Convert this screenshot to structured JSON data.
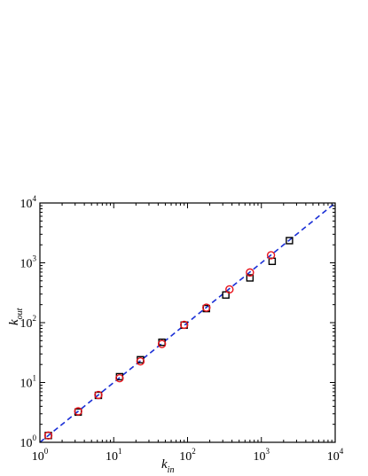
{
  "chart_data": {
    "type": "scatter",
    "title": "",
    "xlabel": {
      "main": "k",
      "sub": "in"
    },
    "ylabel": {
      "main": "k",
      "sub": "out"
    },
    "xscale": "log",
    "yscale": "log",
    "xlim": [
      1,
      10000
    ],
    "ylim": [
      1,
      10000
    ],
    "grid": false,
    "legend": "none",
    "x_ticks": [
      {
        "base": "10",
        "exp": "0"
      },
      {
        "base": "10",
        "exp": "1"
      },
      {
        "base": "10",
        "exp": "2"
      },
      {
        "base": "10",
        "exp": "3"
      },
      {
        "base": "10",
        "exp": "4"
      }
    ],
    "y_ticks": [
      {
        "base": "10",
        "exp": "0"
      },
      {
        "base": "10",
        "exp": "1"
      },
      {
        "base": "10",
        "exp": "2"
      },
      {
        "base": "10",
        "exp": "3"
      },
      {
        "base": "10",
        "exp": "4"
      }
    ],
    "series": [
      {
        "marker": "square",
        "color": "#000000",
        "x": [
          1.3,
          3.3,
          6.2,
          12,
          23,
          45,
          90,
          180,
          330,
          700,
          1400,
          2400
        ],
        "y": [
          1.3,
          3.2,
          6.1,
          12.5,
          24,
          47,
          91,
          172,
          290,
          560,
          1060,
          2350
        ]
      },
      {
        "marker": "circle",
        "color": "#e8141c",
        "x": [
          1.3,
          3.3,
          6.2,
          12,
          23,
          45,
          90,
          180,
          370,
          700,
          1350
        ],
        "y": [
          1.3,
          3.3,
          6.2,
          11.8,
          22.5,
          44,
          92,
          178,
          360,
          690,
          1340
        ]
      }
    ],
    "reference_line": {
      "style": "dashed",
      "color": "#1a2fd6",
      "x": [
        1,
        10000
      ],
      "y": [
        1,
        10000
      ]
    }
  }
}
